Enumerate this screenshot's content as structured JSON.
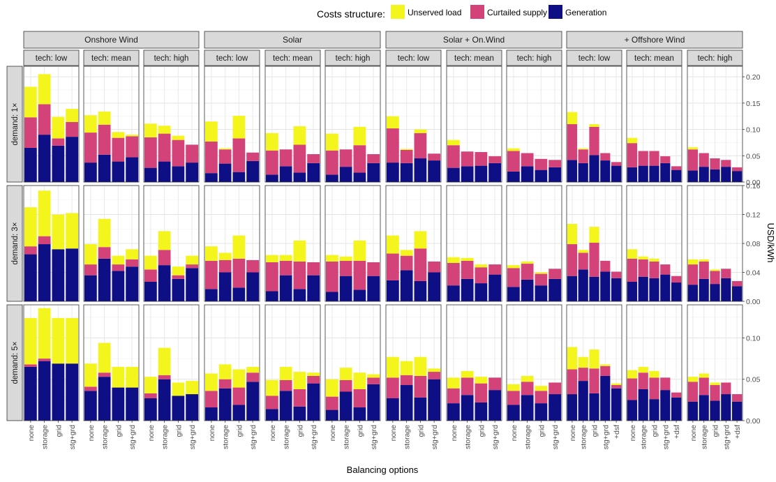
{
  "chart_data": {
    "type": "bar",
    "stacked": true,
    "legend": {
      "title": "Costs structure:",
      "entries": [
        {
          "name": "Unserved load",
          "color": "#f5f51e"
        },
        {
          "name": "Curtailed supply",
          "color": "#d4427a"
        },
        {
          "name": "Generation",
          "color": "#0f0f85"
        }
      ],
      "position": "top"
    },
    "series_order": [
      "Generation",
      "Curtailed supply",
      "Unserved load"
    ],
    "xlabel": "Balancing options",
    "ylabel": "USD/kWh",
    "groups": [
      {
        "label": "Onshore Wind",
        "facets": [
          {
            "label": "tech: low",
            "categories": [
              "none",
              "storage",
              "grid",
              "stg+grd"
            ]
          },
          {
            "label": "tech: mean",
            "categories": [
              "none",
              "storage",
              "grid",
              "stg+grd"
            ]
          },
          {
            "label": "tech: high",
            "categories": [
              "none",
              "storage",
              "grid",
              "stg+grd"
            ]
          }
        ]
      },
      {
        "label": "Solar",
        "facets": [
          {
            "label": "tech: low",
            "categories": [
              "none",
              "storage",
              "grid",
              "stg+grd"
            ]
          },
          {
            "label": "tech: mean",
            "categories": [
              "none",
              "storage",
              "grid",
              "stg+grd"
            ]
          },
          {
            "label": "tech: high",
            "categories": [
              "none",
              "storage",
              "grid",
              "stg+grd"
            ]
          }
        ]
      },
      {
        "label": "Solar + On.Wind",
        "facets": [
          {
            "label": "tech: low",
            "categories": [
              "none",
              "storage",
              "grid",
              "stg+grd"
            ]
          },
          {
            "label": "tech: mean",
            "categories": [
              "none",
              "storage",
              "grid",
              "stg+grd"
            ]
          },
          {
            "label": "tech: high",
            "categories": [
              "none",
              "storage",
              "grid",
              "stg+grd"
            ]
          }
        ]
      },
      {
        "label": "+ Offshore Wind",
        "facets": [
          {
            "label": "tech: low",
            "categories": [
              "none",
              "storage",
              "grid",
              "stg+grd",
              "+dsf"
            ]
          },
          {
            "label": "tech: mean",
            "categories": [
              "none",
              "storage",
              "grid",
              "stg+grd",
              "+dsf"
            ]
          },
          {
            "label": "tech: high",
            "categories": [
              "none",
              "storage",
              "grid",
              "stg+grd",
              "+dsf"
            ]
          }
        ]
      }
    ],
    "rows": [
      {
        "label": "demand: 1×",
        "ylim": [
          0,
          0.22
        ],
        "ticks": [
          {
            "v": 0,
            "t": "0.00"
          },
          {
            "v": 0.05,
            "t": "0.05"
          },
          {
            "v": 0.1,
            "t": "0.10"
          },
          {
            "v": 0.15,
            "t": "0.15"
          },
          {
            "v": 0.2,
            "t": "0.20"
          }
        ],
        "panels": [
          [
            [
              0.065,
              0.058,
              0.058
            ],
            [
              0.09,
              0.058,
              0.057
            ],
            [
              0.069,
              0.014,
              0.041
            ],
            [
              0.086,
              0.028,
              0.025
            ]
          ],
          [
            [
              0.037,
              0.057,
              0.033
            ],
            [
              0.052,
              0.057,
              0.025
            ],
            [
              0.039,
              0.045,
              0.011
            ],
            [
              0.047,
              0.04,
              0.003
            ]
          ],
          [
            [
              0.027,
              0.058,
              0.026
            ],
            [
              0.039,
              0.053,
              0.015
            ],
            [
              0.03,
              0.05,
              0.008
            ],
            [
              0.037,
              0.034,
              0
            ]
          ],
          [
            [
              0.017,
              0.06,
              0.038
            ],
            [
              0.035,
              0.027,
              0.002
            ],
            [
              0.019,
              0.064,
              0.043
            ],
            [
              0.04,
              0.016,
              0
            ]
          ],
          [
            [
              0.014,
              0.046,
              0.033
            ],
            [
              0.03,
              0.032,
              0
            ],
            [
              0.018,
              0.053,
              0.035
            ],
            [
              0.036,
              0.017,
              0
            ]
          ],
          [
            [
              0.014,
              0.046,
              0.032
            ],
            [
              0.029,
              0.033,
              0
            ],
            [
              0.018,
              0.052,
              0.035
            ],
            [
              0.036,
              0.017,
              0
            ]
          ],
          [
            [
              0.037,
              0.065,
              0.023
            ],
            [
              0.036,
              0.025,
              0.002
            ],
            [
              0.045,
              0.048,
              0.007
            ],
            [
              0.041,
              0.013,
              0
            ]
          ],
          [
            [
              0.027,
              0.043,
              0.01
            ],
            [
              0.03,
              0.028,
              0
            ],
            [
              0.031,
              0.026,
              0
            ],
            [
              0.036,
              0.013,
              0
            ]
          ],
          [
            [
              0.02,
              0.039,
              0.005
            ],
            [
              0.03,
              0.025,
              0
            ],
            [
              0.023,
              0.021,
              0
            ],
            [
              0.028,
              0.014,
              0
            ]
          ],
          [
            [
              0.042,
              0.068,
              0.023
            ],
            [
              0.036,
              0.026,
              0.002
            ],
            [
              0.051,
              0.054,
              0.005
            ],
            [
              0.041,
              0.014,
              0
            ],
            [
              0.031,
              0.007,
              0
            ]
          ],
          [
            [
              0.028,
              0.046,
              0.01
            ],
            [
              0.031,
              0.028,
              0
            ],
            [
              0.031,
              0.028,
              0
            ],
            [
              0.036,
              0.013,
              0
            ],
            [
              0.023,
              0.007,
              0
            ]
          ],
          [
            [
              0.022,
              0.04,
              0.004
            ],
            [
              0.029,
              0.026,
              0
            ],
            [
              0.024,
              0.021,
              0
            ],
            [
              0.029,
              0.013,
              0
            ],
            [
              0.021,
              0.007,
              0
            ]
          ]
        ]
      },
      {
        "label": "demand: 3×",
        "ylim": [
          0,
          0.16
        ],
        "ticks": [
          {
            "v": 0,
            "t": "0.00"
          },
          {
            "v": 0.04,
            "t": "0.04"
          },
          {
            "v": 0.08,
            "t": "0.08"
          },
          {
            "v": 0.12,
            "t": "0.12"
          },
          {
            "v": 0.16,
            "t": "0.16"
          }
        ],
        "panels": [
          [
            [
              0.065,
              0.011,
              0.054
            ],
            [
              0.079,
              0.011,
              0.063
            ],
            [
              0.072,
              0,
              0.048
            ],
            [
              0.073,
              0,
              0.049
            ]
          ],
          [
            [
              0.036,
              0.015,
              0.028
            ],
            [
              0.059,
              0.016,
              0.039
            ],
            [
              0.042,
              0.009,
              0.012
            ],
            [
              0.048,
              0.01,
              0.014
            ]
          ],
          [
            [
              0.027,
              0.017,
              0.019
            ],
            [
              0.05,
              0.021,
              0.026
            ],
            [
              0.031,
              0.005,
              0.012
            ],
            [
              0.046,
              0.005,
              0.012
            ]
          ],
          [
            [
              0.017,
              0.039,
              0.02
            ],
            [
              0.04,
              0.017,
              0.01
            ],
            [
              0.019,
              0.04,
              0.032
            ],
            [
              0.04,
              0.017,
              0
            ]
          ],
          [
            [
              0.014,
              0.04,
              0.01
            ],
            [
              0.036,
              0.02,
              0.008
            ],
            [
              0.017,
              0.038,
              0.029
            ],
            [
              0.036,
              0.018,
              0
            ]
          ],
          [
            [
              0.013,
              0.042,
              0.009
            ],
            [
              0.035,
              0.021,
              0.006
            ],
            [
              0.016,
              0.04,
              0.028
            ],
            [
              0.035,
              0.019,
              0
            ]
          ],
          [
            [
              0.029,
              0.037,
              0.025
            ],
            [
              0.043,
              0.02,
              0.008
            ],
            [
              0.028,
              0.045,
              0.024
            ],
            [
              0.04,
              0.015,
              0
            ]
          ],
          [
            [
              0.022,
              0.031,
              0.008
            ],
            [
              0.031,
              0.025,
              0.004
            ],
            [
              0.025,
              0.022,
              0.004
            ],
            [
              0.037,
              0.014,
              0
            ]
          ],
          [
            [
              0.02,
              0.026,
              0.004
            ],
            [
              0.03,
              0.022,
              0.003
            ],
            [
              0.022,
              0.016,
              0.002
            ],
            [
              0.031,
              0.014,
              0
            ]
          ],
          [
            [
              0.035,
              0.044,
              0.028
            ],
            [
              0.044,
              0.023,
              0.004
            ],
            [
              0.034,
              0.047,
              0.022
            ],
            [
              0.041,
              0.015,
              0
            ],
            [
              0.032,
              0.009,
              0
            ]
          ],
          [
            [
              0.027,
              0.032,
              0.013
            ],
            [
              0.034,
              0.024,
              0.004
            ],
            [
              0.032,
              0.023,
              0.004
            ],
            [
              0.037,
              0.014,
              0
            ],
            [
              0.026,
              0.009,
              0
            ]
          ],
          [
            [
              0.023,
              0.028,
              0.007
            ],
            [
              0.031,
              0.024,
              0.003
            ],
            [
              0.024,
              0.018,
              0.002
            ],
            [
              0.032,
              0.013,
              0
            ],
            [
              0.021,
              0.007,
              0
            ]
          ]
        ]
      },
      {
        "label": "demand: 5×",
        "ylim": [
          0,
          0.14
        ],
        "ticks": [
          {
            "v": 0,
            "t": "0.00"
          },
          {
            "v": 0.05,
            "t": "0.05"
          },
          {
            "v": 0.1,
            "t": "0.10"
          }
        ],
        "panels": [
          [
            [
              0.065,
              0.003,
              0.056
            ],
            [
              0.072,
              0.003,
              0.061
            ],
            [
              0.069,
              0,
              0.055
            ],
            [
              0.069,
              0,
              0.055
            ]
          ],
          [
            [
              0.036,
              0.005,
              0.028
            ],
            [
              0.053,
              0.005,
              0.036
            ],
            [
              0.04,
              0,
              0.025
            ],
            [
              0.04,
              0,
              0.025
            ]
          ],
          [
            [
              0.027,
              0.006,
              0.02
            ],
            [
              0.05,
              0.005,
              0.033
            ],
            [
              0.03,
              0,
              0.016
            ],
            [
              0.032,
              0,
              0.016
            ]
          ],
          [
            [
              0.016,
              0.02,
              0.021
            ],
            [
              0.039,
              0.011,
              0.018
            ],
            [
              0.019,
              0.021,
              0.022
            ],
            [
              0.047,
              0.011,
              0.007
            ]
          ],
          [
            [
              0.014,
              0.016,
              0.019
            ],
            [
              0.036,
              0.013,
              0.016
            ],
            [
              0.017,
              0.021,
              0.021
            ],
            [
              0.045,
              0.009,
              0.004
            ]
          ],
          [
            [
              0.013,
              0.016,
              0.021
            ],
            [
              0.035,
              0.014,
              0.015
            ],
            [
              0.016,
              0.022,
              0.02
            ],
            [
              0.044,
              0.008,
              0.004
            ]
          ],
          [
            [
              0.027,
              0.025,
              0.025
            ],
            [
              0.043,
              0.012,
              0.017
            ],
            [
              0.028,
              0.026,
              0.023
            ],
            [
              0.05,
              0.009,
              0.004
            ]
          ],
          [
            [
              0.021,
              0.018,
              0.013
            ],
            [
              0.031,
              0.021,
              0.008
            ],
            [
              0.022,
              0.023,
              0.008
            ],
            [
              0.037,
              0.015,
              0
            ]
          ],
          [
            [
              0.019,
              0.017,
              0.008
            ],
            [
              0.031,
              0.016,
              0.007
            ],
            [
              0.021,
              0.015,
              0.006
            ],
            [
              0.032,
              0.014,
              0
            ]
          ],
          [
            [
              0.032,
              0.03,
              0.027
            ],
            [
              0.048,
              0.016,
              0.013
            ],
            [
              0.033,
              0.03,
              0.023
            ],
            [
              0.054,
              0.012,
              0.002
            ],
            [
              0.039,
              0.004,
              0.002
            ]
          ],
          [
            [
              0.025,
              0.026,
              0.01
            ],
            [
              0.038,
              0.02,
              0.007
            ],
            [
              0.026,
              0.026,
              0.008
            ],
            [
              0.037,
              0.015,
              0
            ],
            [
              0.028,
              0.006,
              0
            ]
          ],
          [
            [
              0.023,
              0.024,
              0.006
            ],
            [
              0.031,
              0.021,
              0.005
            ],
            [
              0.024,
              0.019,
              0.003
            ],
            [
              0.032,
              0.014,
              0
            ],
            [
              0.023,
              0.009,
              0
            ]
          ]
        ]
      }
    ]
  }
}
